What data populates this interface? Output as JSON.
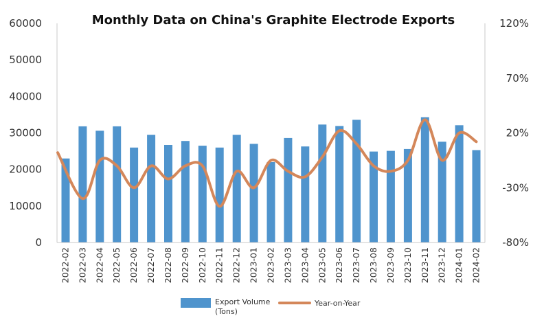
{
  "chart_data": {
    "type": "bar",
    "title": "Monthly Data on China's Graphite Electrode Exports",
    "categories": [
      "2022-02",
      "2022-03",
      "2022-04",
      "2022-05",
      "2022-06",
      "2022-07",
      "2022-08",
      "2022-09",
      "2022-10",
      "2022-11",
      "2022-12",
      "2023-01",
      "2023-02",
      "2023-03",
      "2023-04",
      "2023-05",
      "2023-06",
      "2023-07",
      "2023-08",
      "2023-09",
      "2023-10",
      "2023-11",
      "2023-12",
      "2024-01",
      "2024-02"
    ],
    "y_left": {
      "ticks": [
        "0",
        "10000",
        "20000",
        "30000",
        "40000",
        "50000",
        "60000"
      ],
      "range": [
        0,
        60000
      ]
    },
    "y_right": {
      "ticks": [
        "-80%",
        "-30%",
        "20%",
        "70%",
        "120%"
      ],
      "range": [
        -80,
        120
      ]
    },
    "grid": false,
    "legend_position": "bottom",
    "series": [
      {
        "name": "Export Volume",
        "name_line2": "(Tons)",
        "type": "bar",
        "axis": "left",
        "color": "#4f94cd",
        "values": [
          23000,
          31800,
          30600,
          31800,
          26000,
          29500,
          26700,
          27800,
          26500,
          26000,
          29500,
          27000,
          22000,
          28600,
          26300,
          32300,
          31900,
          33600,
          24900,
          25100,
          25600,
          34300,
          27600,
          32100,
          25300
        ]
      },
      {
        "name": "Year-on-Year",
        "type": "line",
        "axis": "right",
        "color": "#d4875a",
        "values": [
          2,
          -40,
          -5,
          -10,
          -30,
          -10,
          -22,
          -10,
          -10,
          -47,
          -15,
          -30,
          -5,
          -15,
          -20,
          -2,
          22,
          10,
          -10,
          -15,
          -5,
          32,
          -5,
          20,
          12
        ]
      }
    ]
  }
}
